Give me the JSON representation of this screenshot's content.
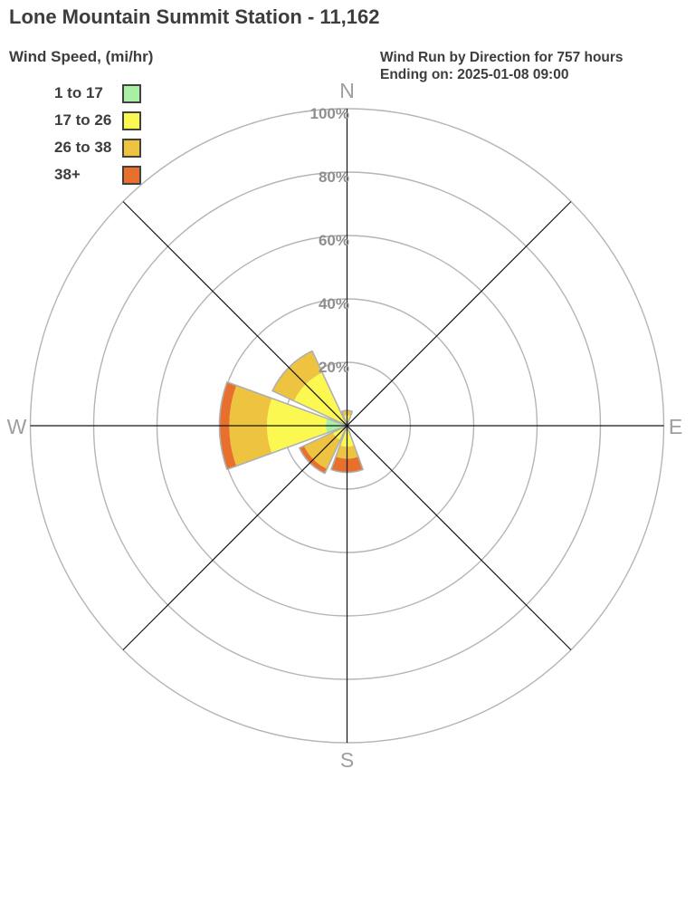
{
  "header": {
    "title": "Lone Mountain Summit Station - 11,162",
    "legend_title": "Wind Speed, (mi/hr)",
    "annotation_line1": "Wind Run by Direction for 757 hours",
    "annotation_line2": "Ending on: 2025-01-08 09:00"
  },
  "legend": {
    "items": [
      {
        "label": "1 to 17",
        "color": "#a9efa4"
      },
      {
        "label": "17 to 26",
        "color": "#fcf852"
      },
      {
        "label": "26 to 38",
        "color": "#eec33f"
      },
      {
        "label": "38+",
        "color": "#e8702d"
      }
    ]
  },
  "chart_data": {
    "type": "wind-rose stacked polar bar",
    "title": "Wind Run by Direction for 757 hours",
    "subtitle": "Ending on: 2025-01-08 09:00",
    "units": "percent of wind run, radial axis 0-100%",
    "compass_labels": {
      "north": "N",
      "east": "E",
      "south": "S",
      "west": "W"
    },
    "ring_labels": [
      "100%",
      "80%",
      "60%",
      "40%",
      "20%"
    ],
    "ring_percents": [
      100,
      80,
      60,
      40,
      20
    ],
    "speed_bins_mph": [
      "1 to 17",
      "17 to 26",
      "26 to 38",
      "38+"
    ],
    "bin_colors": [
      "#a9efa4",
      "#fcf852",
      "#eec33f",
      "#e8702d"
    ],
    "petal_width_deg": 40,
    "petals": [
      {
        "direction": "N",
        "center_deg": 0,
        "values_pct": [
          0,
          3.3,
          1.5,
          0
        ]
      },
      {
        "direction": "S",
        "center_deg": 180,
        "values_pct": [
          0,
          6.6,
          3.8,
          4.3
        ]
      },
      {
        "direction": "SW",
        "center_deg": 225,
        "values_pct": [
          0,
          5.0,
          10.0,
          1.6
        ]
      },
      {
        "direction": "W",
        "center_deg": 270,
        "values_pct": [
          6.7,
          18.6,
          11.9,
          3.1
        ]
      },
      {
        "direction": "NW",
        "center_deg": 315,
        "values_pct": [
          0,
          18.5,
          7.5,
          0
        ]
      }
    ]
  },
  "style_colors": {
    "ring_stroke": "#b5b5b5",
    "axis_stroke": "#161616",
    "petal_outline": "#b0b0b0",
    "ring_label_fill": "#8f8f8f",
    "compass_label_fill": "#9e9e9e",
    "text_dark": "#3d3d3d"
  }
}
